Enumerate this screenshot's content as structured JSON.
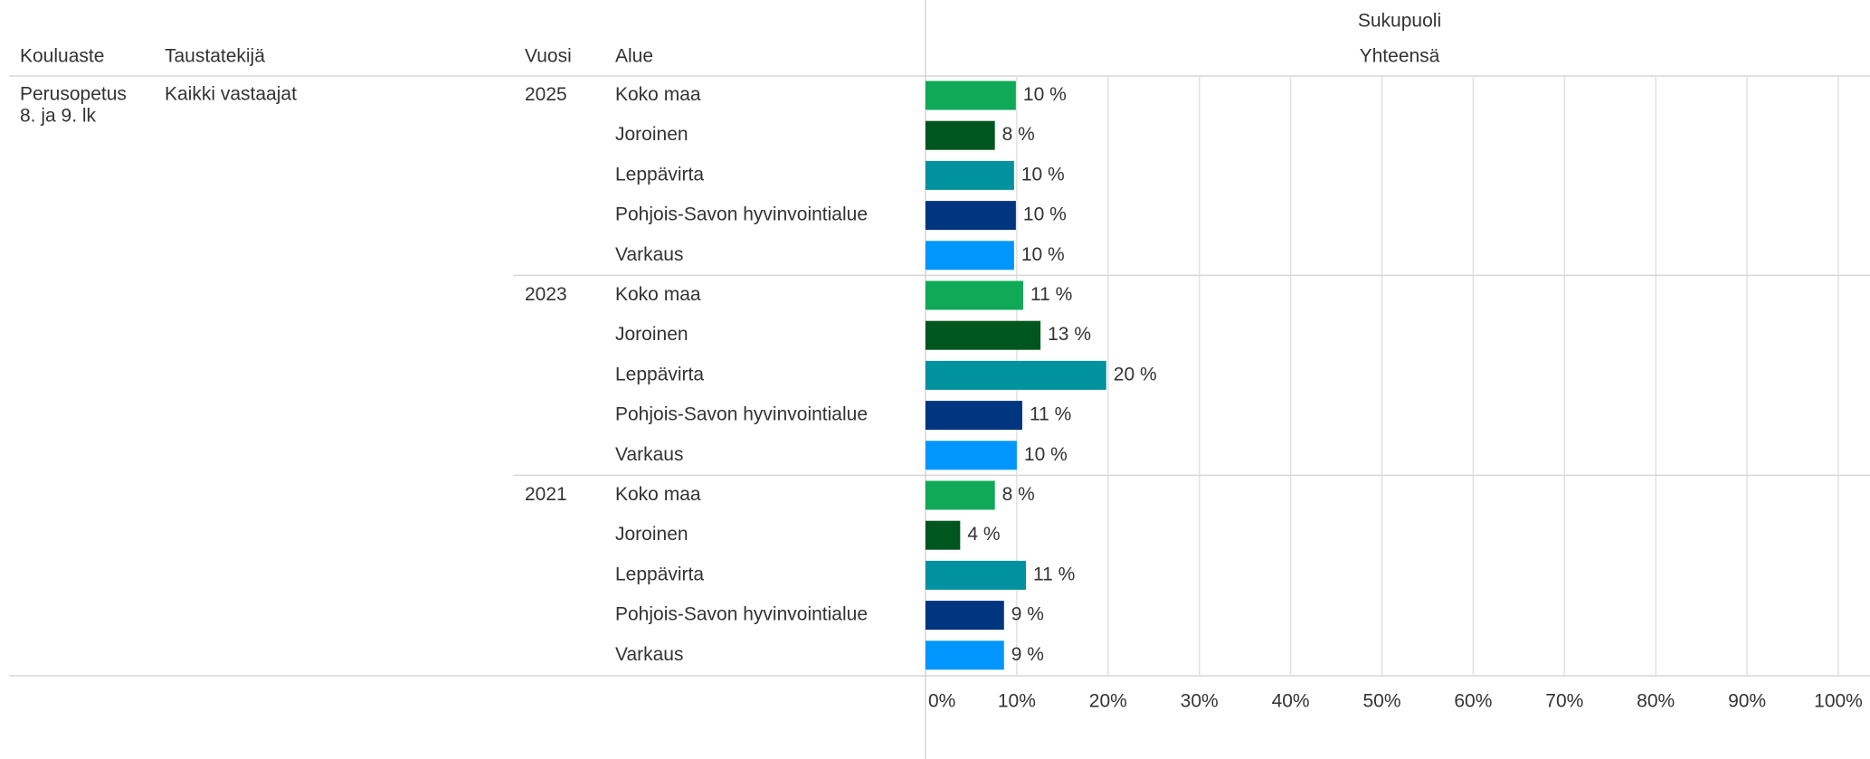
{
  "table": {
    "headers": [
      "Kouluaste",
      "Taustatekijä",
      "Vuosi",
      "Alue"
    ],
    "kouluaste": [
      "Perusopetus",
      "8. ja 9. lk"
    ],
    "taustatekija": "Kaikki vastaajat"
  },
  "chart_data": {
    "type": "bar",
    "orientation": "horizontal",
    "title": "Sukupuoli",
    "subtitle": "Yhteensä",
    "colors": [
      "#10a957",
      "#00561f",
      "#00929e",
      "#00357f",
      "#0096fe"
    ],
    "groups": [
      {
        "name": "2025",
        "categories": [
          "Koko maa",
          "Joroinen",
          "Leppävirta",
          "Pohjois-Savon hyvinvointialue",
          "Varkaus"
        ],
        "values": [
          9.9,
          7.6,
          9.7,
          9.9,
          9.7
        ],
        "value_labels": [
          "10 %",
          "8 %",
          "10 %",
          "10 %",
          "10 %"
        ]
      },
      {
        "name": "2023",
        "categories": [
          "Koko maa",
          "Joroinen",
          "Leppävirta",
          "Pohjois-Savon hyvinvointialue",
          "Varkaus"
        ],
        "values": [
          10.7,
          12.6,
          19.8,
          10.6,
          10.0
        ],
        "value_labels": [
          "11 %",
          "13 %",
          "20 %",
          "11 %",
          "10 %"
        ]
      },
      {
        "name": "2021",
        "categories": [
          "Koko maa",
          "Joroinen",
          "Leppävirta",
          "Pohjois-Savon hyvinvointialue",
          "Varkaus"
        ],
        "values": [
          7.6,
          3.8,
          11.0,
          8.6,
          8.6
        ],
        "value_labels": [
          "8 %",
          "4 %",
          "11 %",
          "9 %",
          "9 %"
        ]
      }
    ],
    "xlim": [
      0,
      100
    ],
    "xticks": [
      {
        "value": 0,
        "label": "0%"
      },
      {
        "value": 10,
        "label": "10%"
      },
      {
        "value": 20,
        "label": "20%"
      },
      {
        "value": 30,
        "label": "30%"
      },
      {
        "value": 40,
        "label": "40%"
      },
      {
        "value": 50,
        "label": "50%"
      },
      {
        "value": 60,
        "label": "60%"
      },
      {
        "value": 70,
        "label": "70%"
      },
      {
        "value": 80,
        "label": "80%"
      },
      {
        "value": 90,
        "label": "90%"
      },
      {
        "value": 100,
        "label": "100%"
      }
    ],
    "grid": true
  }
}
